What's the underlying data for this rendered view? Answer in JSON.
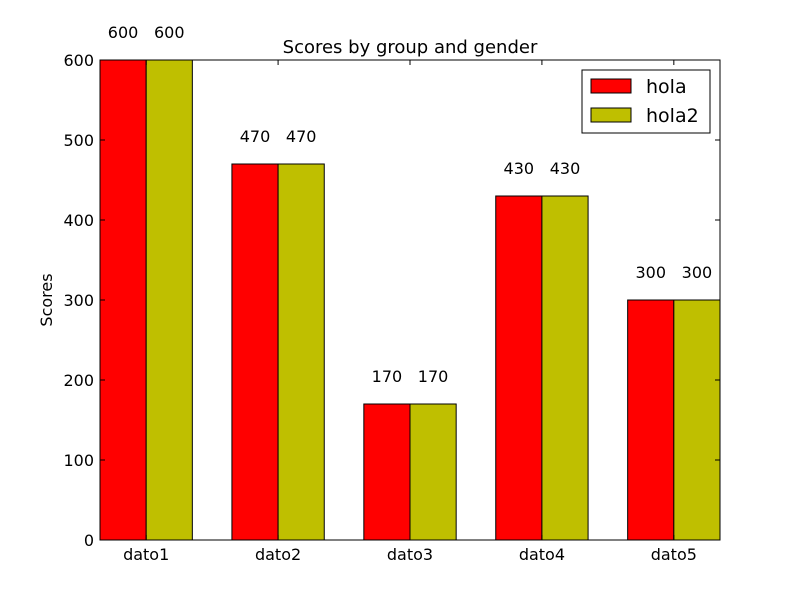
{
  "chart_data": {
    "type": "bar",
    "title": "Scores by group and gender",
    "xlabel": "",
    "ylabel": "Scores",
    "categories": [
      "dato1",
      "dato2",
      "dato3",
      "dato4",
      "dato5"
    ],
    "series": [
      {
        "name": "hola",
        "values": [
          600,
          470,
          170,
          430,
          300
        ],
        "color": "#ff0000"
      },
      {
        "name": "hola2",
        "values": [
          600,
          470,
          170,
          430,
          300
        ],
        "color": "#bfbf00"
      }
    ],
    "ylim": [
      0,
      600
    ],
    "yticks": [
      0,
      100,
      200,
      300,
      400,
      500,
      600
    ],
    "grid": false,
    "legend_position": "top-right"
  }
}
